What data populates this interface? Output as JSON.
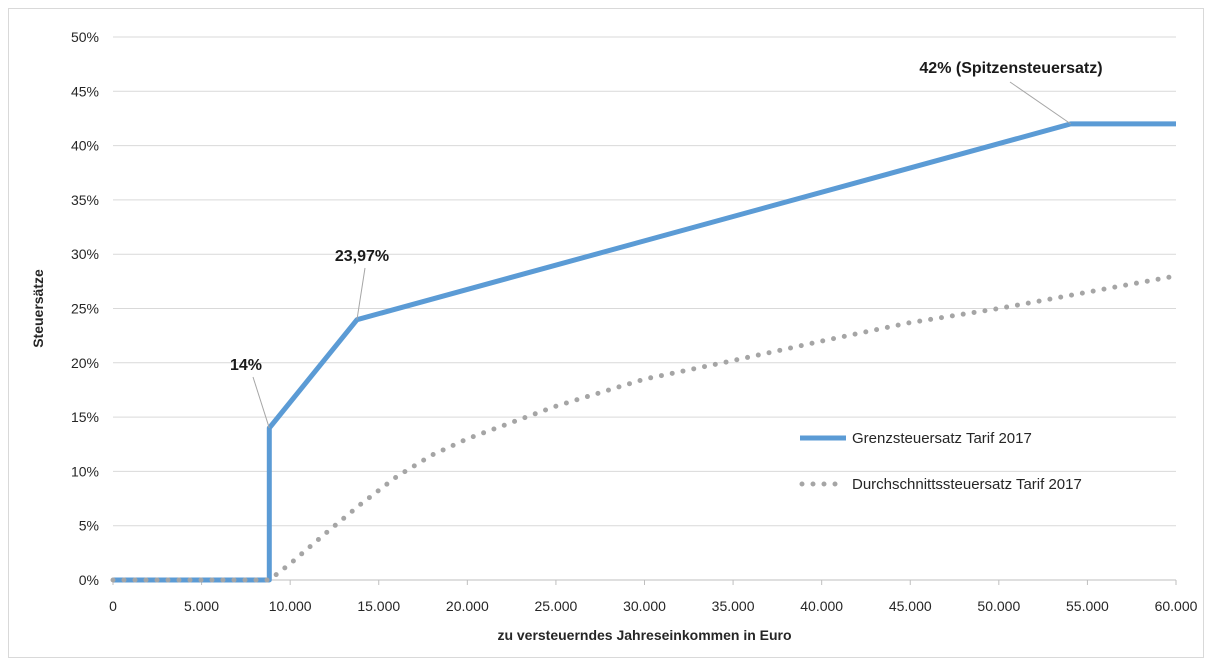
{
  "chart_data": {
    "type": "line",
    "xlabel": "zu versteuerndes Jahreseinkommen in Euro",
    "ylabel": "Steuersätze",
    "xlim": [
      0,
      60000
    ],
    "ylim": [
      0,
      50
    ],
    "x_ticks": [
      0,
      5000,
      10000,
      15000,
      20000,
      25000,
      30000,
      35000,
      40000,
      45000,
      50000,
      55000,
      60000
    ],
    "x_tick_labels": [
      "0",
      "5.000",
      "10.000",
      "15.000",
      "20.000",
      "25.000",
      "30.000",
      "35.000",
      "40.000",
      "45.000",
      "50.000",
      "55.000",
      "60.000"
    ],
    "y_ticks": [
      0,
      5,
      10,
      15,
      20,
      25,
      30,
      35,
      40,
      45,
      50
    ],
    "y_tick_labels": [
      "0%",
      "5%",
      "10%",
      "15%",
      "20%",
      "25%",
      "30%",
      "35%",
      "40%",
      "45%",
      "50%"
    ],
    "grid": "horizontal",
    "legend_position": "right",
    "series": [
      {
        "name": "Grenzsteuersatz Tarif 2017",
        "style": "solid",
        "color": "#5b9bd5",
        "x": [
          0,
          8820,
          8820,
          13770,
          54058,
          60000
        ],
        "y": [
          0,
          0,
          14,
          23.97,
          42,
          42
        ]
      },
      {
        "name": "Durchschnittssteuersatz Tarif 2017",
        "style": "dotted",
        "color": "#a5a5a5",
        "x": [
          0,
          8820,
          10000,
          12000,
          14000,
          16000,
          18000,
          20000,
          25000,
          30000,
          35000,
          40000,
          45000,
          50000,
          55000,
          60000
        ],
        "y": [
          0,
          0,
          1.5,
          4.3,
          7.0,
          9.5,
          11.5,
          13.0,
          16.0,
          18.5,
          20.2,
          22.0,
          23.7,
          25.0,
          26.5,
          28.0
        ]
      }
    ],
    "annotations": [
      {
        "text": "14%",
        "x": 8820,
        "y": 14
      },
      {
        "text": "23,97%",
        "x": 13770,
        "y": 23.97
      },
      {
        "text": "42% (Spitzensteuersatz)",
        "x": 54058,
        "y": 42
      }
    ]
  }
}
